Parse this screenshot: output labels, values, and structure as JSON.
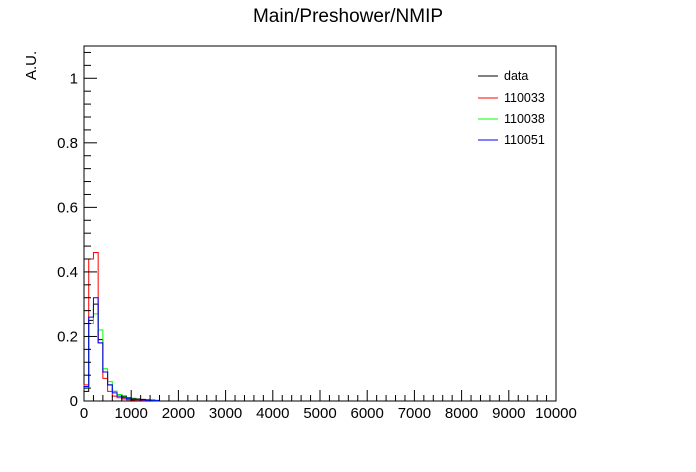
{
  "chart_data": {
    "type": "step",
    "title": "Main/Preshower/NMIP",
    "xlabel": "",
    "ylabel": "A.U.",
    "xlim": [
      0,
      10000
    ],
    "ylim": [
      0,
      1.1
    ],
    "xticks": [
      "0",
      "1000",
      "2000",
      "3000",
      "4000",
      "5000",
      "6000",
      "7000",
      "8000",
      "9000",
      "10000"
    ],
    "yticks": [
      "0",
      "0.2",
      "0.4",
      "0.6",
      "0.8",
      "1"
    ],
    "bin_width": 100,
    "legend_position": "top-right",
    "series": [
      {
        "name": "data",
        "color": "#000000",
        "x": [
          0,
          100,
          200,
          300,
          400,
          500,
          600,
          700,
          800,
          900,
          1000,
          1100,
          1200,
          1300,
          1400,
          1500
        ],
        "values": [
          0.03,
          0.25,
          0.3,
          0.19,
          0.09,
          0.05,
          0.03,
          0.02,
          0.015,
          0.01,
          0.008,
          0.006,
          0.005,
          0.004,
          0.003,
          0.002
        ]
      },
      {
        "name": "110033",
        "color": "#ff0000",
        "x": [
          0,
          100,
          200,
          300,
          400,
          500,
          600,
          700,
          800,
          900,
          1000,
          1100,
          1200
        ],
        "values": [
          0.05,
          0.44,
          0.46,
          0.18,
          0.07,
          0.03,
          0.015,
          0.01,
          0.006,
          0.004,
          0.003,
          0.002,
          0.001
        ]
      },
      {
        "name": "110038",
        "color": "#00ff00",
        "x": [
          0,
          100,
          200,
          300,
          400,
          500,
          600,
          700,
          800,
          900,
          1000,
          1100,
          1200,
          1300,
          1400,
          1500
        ],
        "values": [
          0.04,
          0.24,
          0.27,
          0.22,
          0.1,
          0.06,
          0.03,
          0.02,
          0.012,
          0.008,
          0.006,
          0.004,
          0.003,
          0.002,
          0.002,
          0.001
        ]
      },
      {
        "name": "110051",
        "color": "#0000ff",
        "x": [
          0,
          100,
          200,
          300,
          400,
          500,
          600,
          700,
          800,
          900,
          1000,
          1100,
          1200,
          1300,
          1400,
          1500
        ],
        "values": [
          0.045,
          0.26,
          0.32,
          0.18,
          0.09,
          0.05,
          0.025,
          0.015,
          0.01,
          0.007,
          0.005,
          0.004,
          0.003,
          0.002,
          0.001,
          0.001
        ]
      }
    ]
  }
}
